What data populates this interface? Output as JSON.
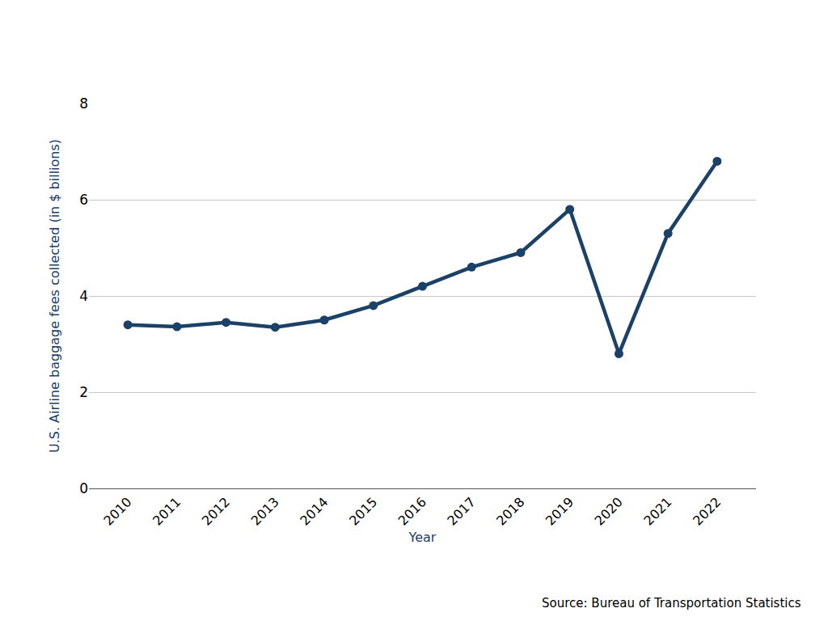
{
  "chart_data": {
    "type": "line",
    "x_label": "Year",
    "y_label": "U.S. Airline baggage fees collected (in $ billions)",
    "annotations": [
      "Source: Bureau of Transportation Statistics"
    ],
    "categories": [
      "2010",
      "2011",
      "2012",
      "2013",
      "2014",
      "2015",
      "2016",
      "2017",
      "2018",
      "2019",
      "2020",
      "2021",
      "2022"
    ],
    "values": [
      3.4,
      3.36,
      3.45,
      3.35,
      3.5,
      3.8,
      4.2,
      4.6,
      4.9,
      5.8,
      2.8,
      5.3,
      6.8
    ],
    "color": "#1b4168",
    "marker": "circle",
    "line_style": "solid",
    "ylim": [
      0,
      8
    ],
    "yticks": [
      0,
      2,
      4,
      6,
      8
    ],
    "grid": true
  }
}
